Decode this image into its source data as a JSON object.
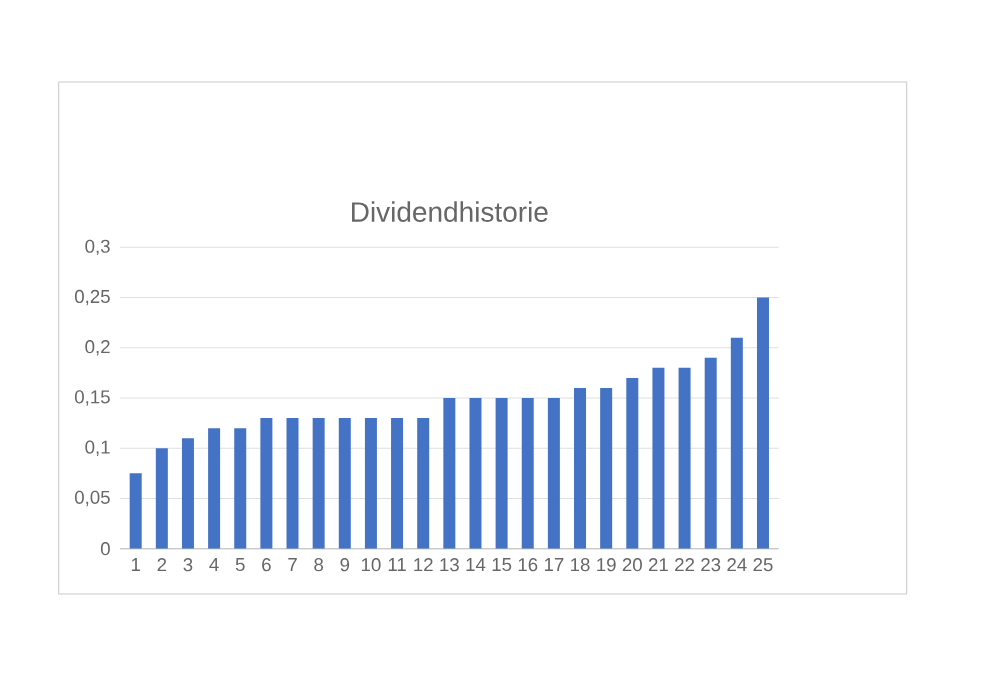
{
  "chart_data": {
    "type": "bar",
    "title": "Dividendhistorie",
    "categories": [
      "1",
      "2",
      "3",
      "4",
      "5",
      "6",
      "7",
      "8",
      "9",
      "10",
      "11",
      "12",
      "13",
      "14",
      "15",
      "16",
      "17",
      "18",
      "19",
      "20",
      "21",
      "22",
      "23",
      "24",
      "25"
    ],
    "values": [
      0.075,
      0.1,
      0.11,
      0.12,
      0.12,
      0.13,
      0.13,
      0.13,
      0.13,
      0.13,
      0.13,
      0.13,
      0.15,
      0.15,
      0.15,
      0.15,
      0.15,
      0.16,
      0.16,
      0.17,
      0.18,
      0.18,
      0.19,
      0.21,
      0.25
    ],
    "color": "#4472c4",
    "ylim": [
      0,
      0.3
    ],
    "yticks": [
      0,
      {
        "value": 0.05,
        "label": "0,05"
      },
      {
        "value": 0.1,
        "label": "0,1"
      },
      {
        "value": 0.15,
        "label": "0,15"
      },
      {
        "value": 0.2,
        "label": "0,2"
      },
      {
        "value": 0.25,
        "label": "0,25"
      },
      {
        "value": 0.3,
        "label": "0,3"
      }
    ],
    "grid": "y"
  }
}
